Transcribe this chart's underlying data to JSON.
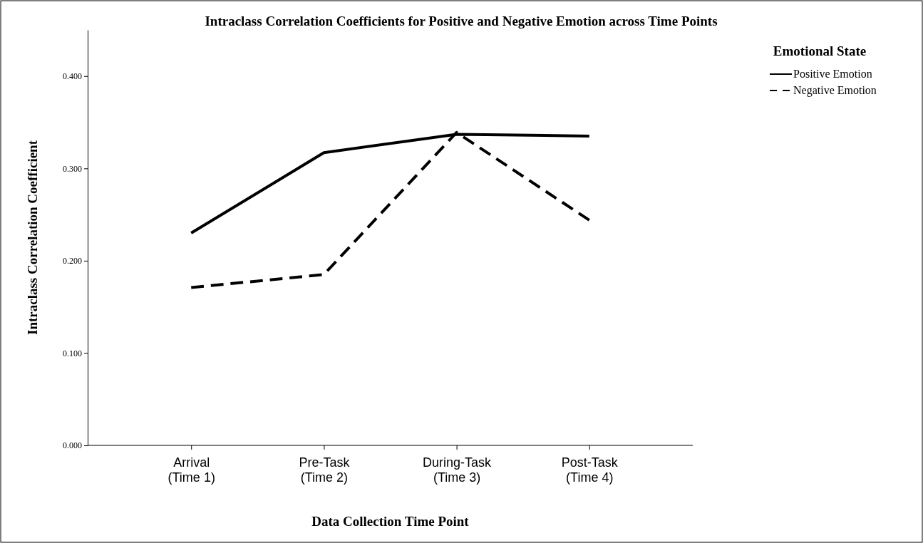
{
  "chart_data": {
    "type": "line",
    "title": "Intraclass Correlation Coefficients for Positive and Negative Emotion across Time Points",
    "xlabel": "Data Collection Time Point",
    "ylabel": "Intraclass Correlation Coefficient",
    "legend_title": "Emotional State",
    "categories": [
      "Arrival\n(Time 1)",
      "Pre-Task\n(Time 2)",
      "During-Task\n(Time 3)",
      "Post-Task\n(Time 4)"
    ],
    "series": [
      {
        "name": "Positive Emotion",
        "color": "#000000",
        "line_style": "solid",
        "values": [
          0.23,
          0.317,
          0.337,
          0.335
        ]
      },
      {
        "name": "Negative Emotion",
        "color": "#000000",
        "line_style": "dashed",
        "values": [
          0.171,
          0.185,
          0.339,
          0.244
        ]
      }
    ],
    "ylim": [
      0,
      0.45
    ],
    "yticks": [
      {
        "value": 0,
        "label": "0.000"
      },
      {
        "value": 0.1,
        "label": "0.100"
      },
      {
        "value": 0.2,
        "label": "0.200"
      },
      {
        "value": 0.3,
        "label": "0.300"
      },
      {
        "value": 0.4,
        "label": "0.400"
      }
    ],
    "grid": false,
    "legend": "top right",
    "marker": "none"
  }
}
